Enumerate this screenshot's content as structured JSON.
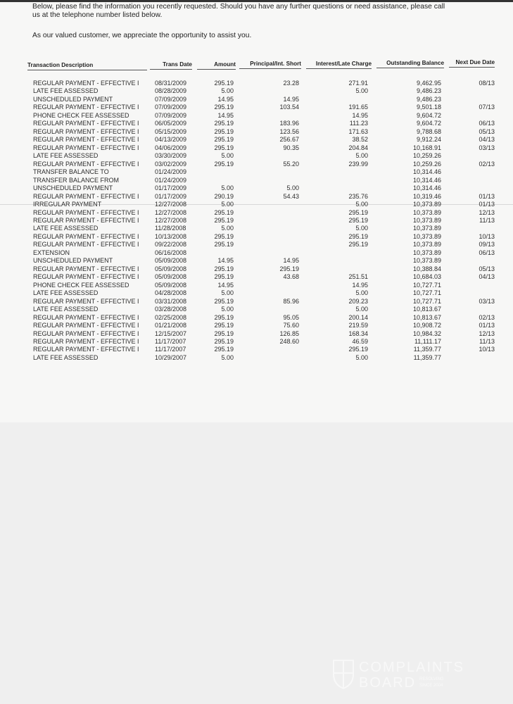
{
  "intro": {
    "line1": "Below, please find the information you recently requested.  Should you have any further questions or need assistance, please call",
    "line2": "us at the telephone number listed below.",
    "line3": "As our valued customer, we appreciate the opportunity to assist you."
  },
  "table": {
    "headers": [
      "Transaction Description",
      "Trans Date",
      "Amount",
      "Principal/Int. Short",
      "Interest/Late Charge",
      "Outstanding Balance",
      "Next Due Date"
    ],
    "rows": [
      [
        "REGULAR PAYMENT - EFFECTIVE I",
        "08/31/2009",
        "295.19",
        "23.28",
        "271.91",
        "9,462.95",
        "08/13"
      ],
      [
        "LATE FEE ASSESSED",
        "08/28/2009",
        "5.00",
        "",
        "5.00",
        "9,486.23",
        ""
      ],
      [
        "UNSCHEDULED PAYMENT",
        "07/09/2009",
        "14.95",
        "14.95",
        "",
        "9,486.23",
        ""
      ],
      [
        "REGULAR PAYMENT - EFFECTIVE I",
        "07/09/2009",
        "295.19",
        "103.54",
        "191.65",
        "9,501.18",
        "07/13"
      ],
      [
        "PHONE CHECK FEE ASSESSED",
        "07/09/2009",
        "14.95",
        "",
        "14.95",
        "9,604.72",
        ""
      ],
      [
        "REGULAR PAYMENT - EFFECTIVE I",
        "06/05/2009",
        "295.19",
        "183.96",
        "111.23",
        "9,604.72",
        "06/13"
      ],
      [
        "REGULAR PAYMENT - EFFECTIVE I",
        "05/15/2009",
        "295.19",
        "123.56",
        "171.63",
        "9,788.68",
        "05/13"
      ],
      [
        "REGULAR PAYMENT - EFFECTIVE I",
        "04/13/2009",
        "295.19",
        "256.67",
        "38.52",
        "9,912.24",
        "04/13"
      ],
      [
        "REGULAR PAYMENT - EFFECTIVE I",
        "04/06/2009",
        "295.19",
        "90.35",
        "204.84",
        "10,168.91",
        "03/13"
      ],
      [
        "LATE FEE ASSESSED",
        "03/30/2009",
        "5.00",
        "",
        "5.00",
        "10,259.26",
        ""
      ],
      [
        "REGULAR PAYMENT - EFFECTIVE I",
        "03/02/2009",
        "295.19",
        "55.20",
        "239.99",
        "10,259.26",
        "02/13"
      ],
      [
        "TRANSFER BALANCE TO",
        "01/24/2009",
        "",
        "",
        "",
        "10,314.46",
        ""
      ],
      [
        "TRANSFER BALANCE FROM",
        "01/24/2009",
        "",
        "",
        "",
        "10,314.46",
        ""
      ],
      [
        "UNSCHEDULED PAYMENT",
        "01/17/2009",
        "5.00",
        "5.00",
        "",
        "10,314.46",
        ""
      ],
      [
        "REGULAR PAYMENT - EFFECTIVE I",
        "01/17/2009",
        "290.19",
        "54.43",
        "235.76",
        "10,319.46",
        "01/13"
      ],
      [
        "IRREGULAR PAYMENT",
        "12/27/2008",
        "5.00",
        "",
        "5.00",
        "10,373.89",
        "01/13"
      ],
      [
        "REGULAR PAYMENT - EFFECTIVE I",
        "12/27/2008",
        "295.19",
        "",
        "295.19",
        "10,373.89",
        "12/13"
      ],
      [
        "REGULAR PAYMENT - EFFECTIVE I",
        "12/27/2008",
        "295.19",
        "",
        "295.19",
        "10,373.89",
        "11/13"
      ],
      [
        "LATE FEE ASSESSED",
        "11/28/2008",
        "5.00",
        "",
        "5.00",
        "10,373.89",
        ""
      ],
      [
        "REGULAR PAYMENT - EFFECTIVE I",
        "10/13/2008",
        "295.19",
        "",
        "295.19",
        "10,373.89",
        "10/13"
      ],
      [
        "REGULAR PAYMENT - EFFECTIVE I",
        "09/22/2008",
        "295.19",
        "",
        "295.19",
        "10,373.89",
        "09/13"
      ],
      [
        "EXTENSION",
        "06/16/2008",
        "",
        "",
        "",
        "10,373.89",
        "06/13"
      ],
      [
        "UNSCHEDULED PAYMENT",
        "05/09/2008",
        "14.95",
        "14.95",
        "",
        "10,373.89",
        ""
      ],
      [
        "REGULAR PAYMENT - EFFECTIVE I",
        "05/09/2008",
        "295.19",
        "295.19",
        "",
        "10,388.84",
        "05/13"
      ],
      [
        "REGULAR PAYMENT - EFFECTIVE I",
        "05/09/2008",
        "295.19",
        "43.68",
        "251.51",
        "10,684.03",
        "04/13"
      ],
      [
        "PHONE CHECK FEE ASSESSED",
        "05/09/2008",
        "14.95",
        "",
        "14.95",
        "10,727.71",
        ""
      ],
      [
        "LATE FEE ASSESSED",
        "04/28/2008",
        "5.00",
        "",
        "5.00",
        "10,727.71",
        ""
      ],
      [
        "REGULAR PAYMENT - EFFECTIVE I",
        "03/31/2008",
        "295.19",
        "85.96",
        "209.23",
        "10,727.71",
        "03/13"
      ],
      [
        "LATE FEE ASSESSED",
        "03/28/2008",
        "5.00",
        "",
        "5.00",
        "10,813.67",
        ""
      ],
      [
        "REGULAR PAYMENT - EFFECTIVE I",
        "02/25/2008",
        "295.19",
        "95.05",
        "200.14",
        "10,813.67",
        "02/13"
      ],
      [
        "REGULAR PAYMENT - EFFECTIVE I",
        "01/21/2008",
        "295.19",
        "75.60",
        "219.59",
        "10,908.72",
        "01/13"
      ],
      [
        "REGULAR PAYMENT - EFFECTIVE I",
        "12/15/2007",
        "295.19",
        "126.85",
        "168.34",
        "10,984.32",
        "12/13"
      ],
      [
        "REGULAR PAYMENT - EFFECTIVE I",
        "11/17/2007",
        "295.19",
        "248.60",
        "46.59",
        "11,111.17",
        "11/13"
      ],
      [
        "REGULAR PAYMENT - EFFECTIVE I",
        "11/17/2007",
        "295.19",
        "",
        "295.19",
        "11,359.77",
        "10/13"
      ],
      [
        "LATE FEE ASSESSED",
        "10/29/2007",
        "5.00",
        "",
        "5.00",
        "11,359.77",
        ""
      ]
    ]
  },
  "watermark": {
    "line1": "COMPLAINTS",
    "line2": "BOARD",
    "tagline": "RESOLVING SINCE 2004",
    "icon": "shield-icon"
  }
}
